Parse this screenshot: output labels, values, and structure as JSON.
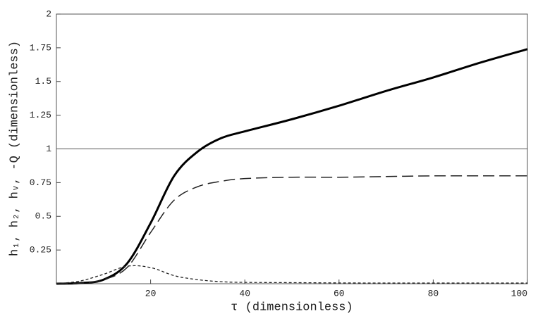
{
  "chart_data": {
    "type": "line",
    "x_label": "τ (dimensionless)",
    "y_label": "h₁, h₂, hᵥ, -Q (dimensionless)",
    "x": [
      0,
      5,
      10,
      15,
      20,
      25,
      30,
      35,
      40,
      50,
      60,
      70,
      80,
      90,
      100
    ],
    "series": [
      {
        "color": "#000000",
        "style": "solid",
        "values": [
          0,
          0.005,
          0.03,
          0.15,
          0.45,
          0.8,
          0.98,
          1.08,
          1.13,
          1.22,
          1.32,
          1.43,
          1.53,
          1.64,
          1.74
        ]
      },
      {
        "color": "#222222",
        "style": "long-dash",
        "values": [
          0,
          0.004,
          0.03,
          0.12,
          0.38,
          0.62,
          0.72,
          0.76,
          0.78,
          0.79,
          0.79,
          0.795,
          0.8,
          0.8,
          0.8
        ]
      },
      {
        "color": "#222222",
        "style": "short-dash",
        "values": [
          0,
          0.02,
          0.07,
          0.13,
          0.12,
          0.06,
          0.03,
          0.015,
          0.01,
          0.008,
          0.006,
          0.005,
          0.005,
          0.005,
          0.005
        ]
      }
    ],
    "reference_line": 1,
    "xlim": [
      0,
      100
    ],
    "ylim": [
      0,
      2
    ],
    "xticks": [
      20,
      40,
      60,
      80,
      100
    ],
    "yticks": [
      0.25,
      0.5,
      0.75,
      1,
      1.25,
      1.5,
      1.75,
      2
    ]
  }
}
